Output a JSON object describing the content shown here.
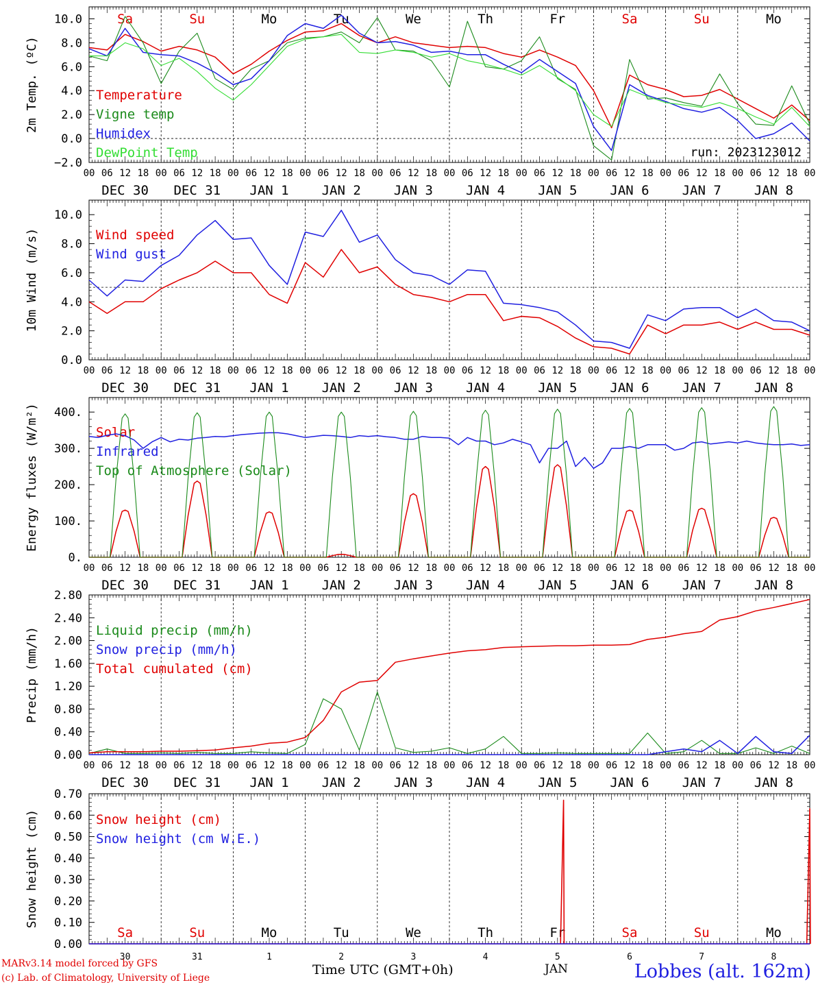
{
  "footer": {
    "credit_line1": "MARv3.14 model forced by GFS",
    "credit_line2": "(c) Lab. of Climatology, University of Liege",
    "x_title": "Time UTC (GMT+0h)",
    "month_label": "JAN",
    "station": "Lobbes (alt. 162m)"
  },
  "colors": {
    "red": "#e00000",
    "dark_green": "#1a8a1a",
    "blue": "#1f1fe0",
    "light_green": "#33dd33",
    "brown": "#a05a1a"
  },
  "axis": {
    "hour_ticks": [
      "00",
      "06",
      "12",
      "18"
    ],
    "end_tick": "00",
    "day_labels": [
      "DEC 30",
      "DEC 31",
      "JAN  1",
      "JAN  2",
      "JAN  3",
      "JAN  4",
      "JAN  5",
      "JAN  6",
      "JAN  7",
      "JAN  8"
    ],
    "weekdays": [
      "Sa",
      "Su",
      "Mo",
      "Tu",
      "We",
      "Th",
      "Fr",
      "Sa",
      "Su",
      "Mo"
    ],
    "weekday_colors": [
      "red",
      "red",
      "black",
      "black",
      "black",
      "black",
      "black",
      "red",
      "red",
      "black"
    ],
    "bottom_day_numbers": [
      "30",
      "31",
      "1",
      "2",
      "3",
      "4",
      "5",
      "6",
      "7",
      "8"
    ]
  },
  "chart_data": [
    {
      "type": "line",
      "ylabel": "2m Temp. (ºC)",
      "ylim": [
        -2,
        11
      ],
      "yticks": [
        "-2.0",
        "0.0",
        "2.0",
        "4.0",
        "6.0",
        "8.0",
        "10.0"
      ],
      "reference_line": 0,
      "annotation": "run: 2023123012",
      "x": [
        0,
        6,
        12,
        18,
        24,
        30,
        36,
        42,
        48,
        54,
        60,
        66,
        72,
        78,
        84,
        90,
        96,
        102,
        108,
        114,
        120,
        126,
        132,
        138,
        144,
        150,
        156,
        162,
        168,
        174,
        180,
        186,
        192,
        198,
        204,
        210,
        216,
        222,
        228,
        234,
        240
      ],
      "series": [
        {
          "name": "Temperature",
          "color": "red",
          "values": [
            7.6,
            7.4,
            8.7,
            8.1,
            7.3,
            7.7,
            7.4,
            6.8,
            5.4,
            6.2,
            7.3,
            8.2,
            8.9,
            9.0,
            9.6,
            8.6,
            8.0,
            8.5,
            8.0,
            7.8,
            7.6,
            7.7,
            7.6,
            7.1,
            6.8,
            7.4,
            6.8,
            6.1,
            4.0,
            0.9,
            5.3,
            4.5,
            4.1,
            3.5,
            3.6,
            4.1,
            3.3,
            2.5,
            1.7,
            2.8,
            1.5
          ]
        },
        {
          "name": "Vigne temp",
          "color": "dark_green",
          "values": [
            6.9,
            6.5,
            10.2,
            8.0,
            4.6,
            7.3,
            8.8,
            5.0,
            4.1,
            5.8,
            6.5,
            8.0,
            8.4,
            8.5,
            8.9,
            8.0,
            10.1,
            7.4,
            7.3,
            6.5,
            4.3,
            9.8,
            6.0,
            5.8,
            6.5,
            8.5,
            5.0,
            4.1,
            -0.6,
            -1.8,
            6.6,
            3.3,
            3.4,
            3.0,
            2.7,
            5.4,
            2.9,
            1.2,
            1.1,
            4.4,
            1.2
          ]
        },
        {
          "name": "Humidex",
          "color": "blue",
          "values": [
            7.5,
            6.9,
            9.2,
            7.2,
            7.0,
            6.9,
            6.3,
            5.5,
            4.5,
            5.0,
            6.5,
            8.6,
            9.6,
            9.2,
            10.3,
            8.8,
            8.0,
            8.1,
            7.8,
            7.2,
            7.3,
            7.0,
            7.0,
            6.2,
            5.5,
            6.6,
            5.6,
            4.6,
            1.0,
            -1.0,
            4.5,
            3.6,
            3.1,
            2.5,
            2.2,
            2.6,
            1.5,
            0.0,
            0.4,
            1.3,
            -0.2
          ]
        },
        {
          "name": "DewPoint Temp",
          "color": "light_green",
          "values": [
            6.9,
            6.9,
            8.0,
            7.5,
            6.1,
            6.7,
            5.6,
            4.2,
            3.2,
            4.5,
            6.1,
            7.7,
            8.3,
            8.5,
            8.7,
            7.2,
            7.1,
            7.4,
            7.2,
            6.8,
            7.1,
            6.5,
            6.2,
            5.8,
            5.3,
            6.1,
            5.1,
            4.0,
            2.0,
            1.0,
            4.1,
            3.5,
            3.0,
            2.8,
            2.6,
            3.0,
            2.5,
            1.8,
            1.2,
            2.6,
            1.0
          ]
        }
      ]
    },
    {
      "type": "line",
      "ylabel": "10m Wind (m/s)",
      "ylim": [
        0,
        11
      ],
      "yticks": [
        "0.0",
        "2.0",
        "4.0",
        "6.0",
        "8.0",
        "10.0"
      ],
      "reference_line": 5,
      "x": [
        0,
        6,
        12,
        18,
        24,
        30,
        36,
        42,
        48,
        54,
        60,
        66,
        72,
        78,
        84,
        90,
        96,
        102,
        108,
        114,
        120,
        126,
        132,
        138,
        144,
        150,
        156,
        162,
        168,
        174,
        180,
        186,
        192,
        198,
        204,
        210,
        216,
        222,
        228,
        234,
        240
      ],
      "series": [
        {
          "name": "Wind speed",
          "color": "red",
          "values": [
            4.0,
            3.2,
            4.0,
            4.0,
            4.9,
            5.5,
            6.0,
            6.8,
            6.0,
            6.0,
            4.5,
            3.9,
            6.7,
            5.7,
            7.6,
            6.0,
            6.4,
            5.2,
            4.5,
            4.3,
            4.0,
            4.5,
            4.5,
            2.7,
            3.0,
            2.9,
            2.3,
            1.5,
            0.9,
            0.8,
            0.4,
            2.4,
            1.8,
            2.4,
            2.4,
            2.6,
            2.1,
            2.6,
            2.1,
            2.1,
            1.7
          ]
        },
        {
          "name": "Wind gust",
          "color": "blue",
          "values": [
            5.5,
            4.4,
            5.5,
            5.4,
            6.5,
            7.2,
            8.6,
            9.6,
            8.3,
            8.4,
            6.5,
            5.2,
            8.8,
            8.5,
            10.3,
            8.1,
            8.6,
            6.9,
            6.0,
            5.8,
            5.2,
            6.2,
            6.1,
            3.9,
            3.8,
            3.6,
            3.3,
            2.4,
            1.3,
            1.2,
            0.8,
            3.1,
            2.7,
            3.5,
            3.6,
            3.6,
            2.9,
            3.5,
            2.7,
            2.6,
            2.0
          ]
        }
      ]
    },
    {
      "type": "line",
      "ylabel": "Energy fluxes (W/m²)",
      "ylim": [
        0,
        440
      ],
      "yticks": [
        "0.",
        "100.",
        "200.",
        "300.",
        "400."
      ],
      "x_step_hours": 3,
      "series": [
        {
          "name": "Solar",
          "color": "red",
          "day_peaks": [
            130,
            210,
            125,
            8,
            175,
            250,
            255,
            130,
            135,
            110
          ]
        },
        {
          "name": "Infrared",
          "color": "blue",
          "values": [
            333,
            330,
            336,
            340,
            335,
            323,
            300,
            318,
            330,
            318,
            325,
            323,
            328,
            330,
            333,
            332,
            335,
            338,
            340,
            342,
            343,
            343,
            340,
            335,
            330,
            333,
            336,
            335,
            333,
            330,
            335,
            333,
            335,
            332,
            330,
            325,
            325,
            333,
            330,
            330,
            328,
            310,
            330,
            320,
            320,
            310,
            315,
            325,
            318,
            310,
            260,
            300,
            300,
            320,
            250,
            275,
            245,
            260,
            300,
            300,
            305,
            300,
            310,
            310,
            310,
            295,
            300,
            315,
            318,
            312,
            315,
            318,
            315,
            320,
            315,
            312,
            310,
            310,
            312,
            308,
            310
          ]
        },
        {
          "name": "Top of Atmosphere (Solar)",
          "color": "dark_green",
          "day_peaks": [
            395,
            398,
            400,
            400,
            402,
            405,
            408,
            410,
            412,
            415
          ]
        }
      ]
    },
    {
      "type": "line",
      "ylabel": "Precip (mm/h)",
      "ylim": [
        0,
        2.8
      ],
      "yticks": [
        "0.00",
        "0.40",
        "0.80",
        "1.20",
        "1.60",
        "2.00",
        "2.40",
        "2.80"
      ],
      "x": [
        0,
        6,
        12,
        18,
        24,
        30,
        36,
        42,
        48,
        54,
        60,
        66,
        72,
        78,
        84,
        90,
        96,
        102,
        108,
        114,
        120,
        126,
        132,
        138,
        144,
        150,
        156,
        162,
        168,
        174,
        180,
        186,
        192,
        198,
        204,
        210,
        216,
        222,
        228,
        234,
        240
      ],
      "series": [
        {
          "name": "Liquid precip (mm/h)",
          "color": "dark_green",
          "values": [
            0.02,
            0.1,
            0.02,
            0.02,
            0.03,
            0.02,
            0.04,
            0.02,
            0.02,
            0.05,
            0.03,
            0.02,
            0.18,
            0.98,
            0.8,
            0.08,
            1.1,
            0.12,
            0.04,
            0.06,
            0.12,
            0.02,
            0.1,
            0.32,
            0.02,
            0.02,
            0.03,
            0.02,
            0.02,
            0.02,
            0.02,
            0.38,
            0.02,
            0.05,
            0.25,
            0.02,
            0.02,
            0.12,
            0.02,
            0.15,
            0.02
          ]
        },
        {
          "name": "Snow precip (mm/h)",
          "color": "blue",
          "values": [
            0,
            0,
            0,
            0,
            0,
            0,
            0,
            0,
            0,
            0,
            0,
            0,
            0,
            0,
            0,
            0,
            0,
            0,
            0,
            0,
            0,
            0,
            0,
            0,
            0,
            0,
            0,
            0,
            0,
            0,
            0,
            0,
            0.05,
            0.1,
            0.05,
            0.25,
            0.02,
            0.32,
            0.05,
            0.02,
            0.34
          ]
        },
        {
          "name": "Total cumulated (cm)",
          "color": "red",
          "values": [
            0.03,
            0.05,
            0.05,
            0.05,
            0.06,
            0.06,
            0.07,
            0.08,
            0.12,
            0.15,
            0.2,
            0.22,
            0.3,
            0.6,
            1.1,
            1.27,
            1.3,
            1.62,
            1.68,
            1.73,
            1.78,
            1.82,
            1.84,
            1.88,
            1.89,
            1.9,
            1.91,
            1.91,
            1.92,
            1.92,
            1.93,
            2.02,
            2.06,
            2.12,
            2.16,
            2.36,
            2.42,
            2.52,
            2.58,
            2.65,
            2.72
          ]
        }
      ]
    },
    {
      "type": "line",
      "ylabel": "Snow height (cm)",
      "ylim": [
        0,
        0.7
      ],
      "yticks": [
        "0.00",
        "0.10",
        "0.20",
        "0.30",
        "0.40",
        "0.50",
        "0.60",
        "0.70"
      ],
      "x": [
        0,
        150,
        156,
        157,
        158,
        159,
        160,
        232,
        238,
        239,
        240
      ],
      "series": [
        {
          "name": "Snow height (cm)",
          "color": "red",
          "values": [
            0,
            0,
            0,
            0,
            0,
            0,
            0,
            0,
            0,
            0,
            0
          ],
          "spikes": [
            [
              158,
              0.67
            ],
            [
              240,
              0.63
            ]
          ]
        },
        {
          "name": "Snow height (cm W.E.)",
          "color": "blue",
          "values": [
            0,
            0,
            0,
            0,
            0,
            0,
            0,
            0,
            0,
            0,
            0
          ]
        }
      ]
    }
  ]
}
